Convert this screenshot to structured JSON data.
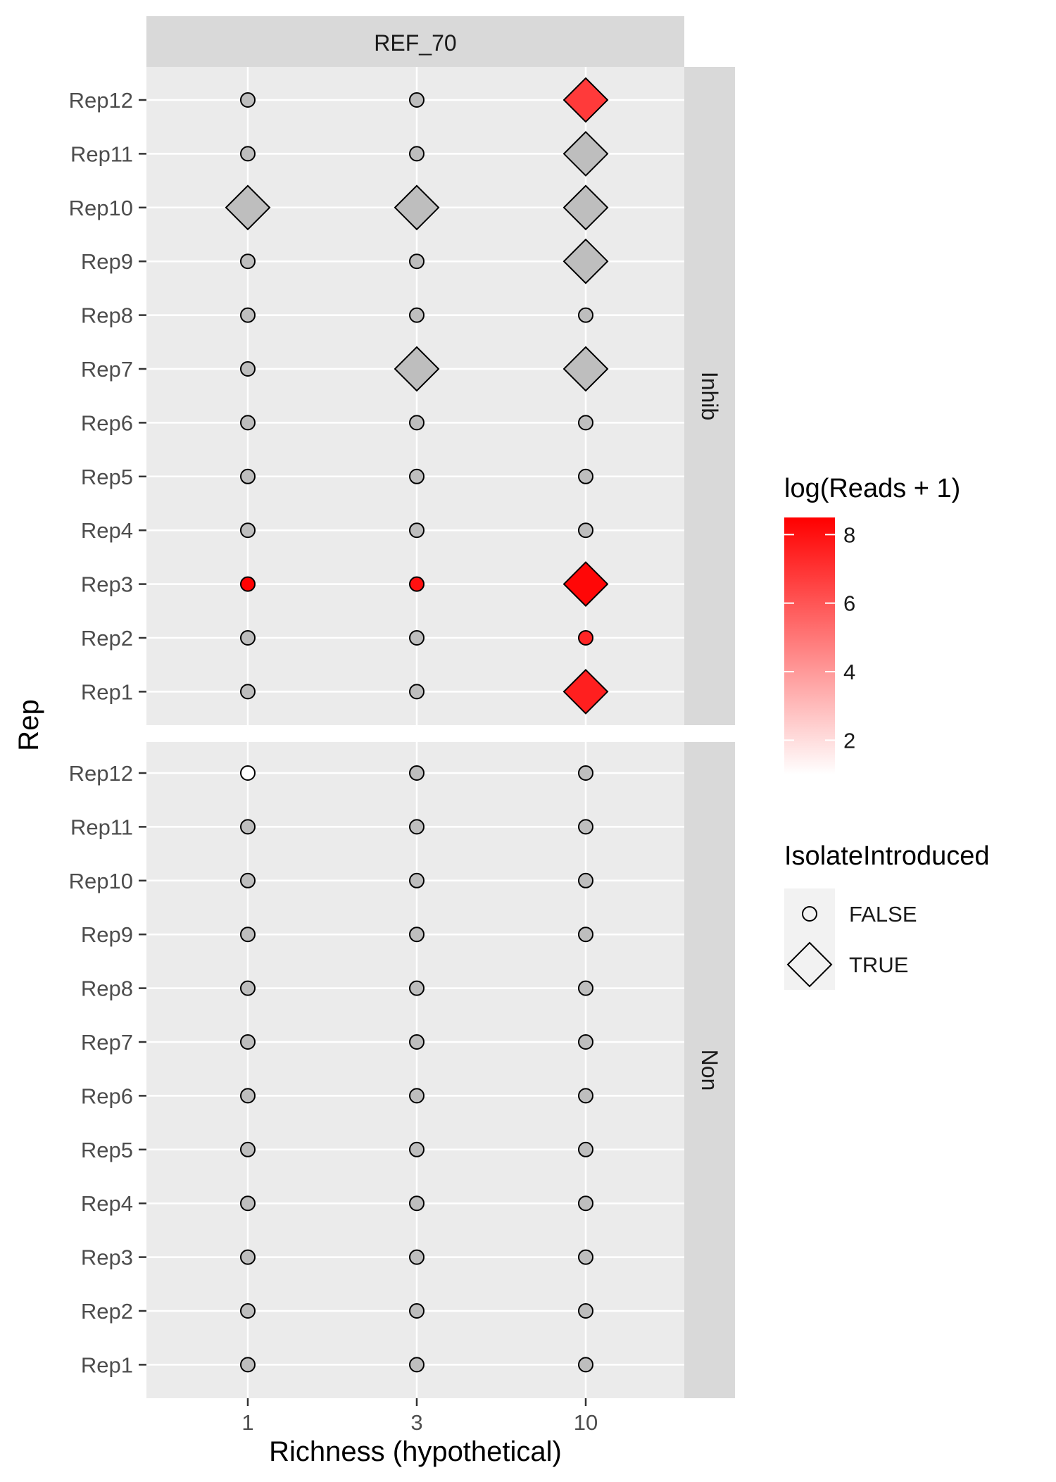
{
  "chart_data": {
    "type": "scatter",
    "facet_title": "REF_70",
    "panels": [
      "Inhib",
      "Non"
    ],
    "x_categories": [
      "1",
      "3",
      "10"
    ],
    "y_categories": [
      "Rep1",
      "Rep2",
      "Rep3",
      "Rep4",
      "Rep5",
      "Rep6",
      "Rep7",
      "Rep8",
      "Rep9",
      "Rep10",
      "Rep11",
      "Rep12"
    ],
    "xlabel": "Richness (hypothetical)",
    "ylabel": "Rep",
    "color_legend": {
      "title": "log(Reads + 1)",
      "min": 1.0,
      "max": 8.5,
      "ticks": [
        2,
        4,
        6,
        8
      ],
      "low_color": "#ffffff",
      "high_color": "#ff0000"
    },
    "shape_legend": {
      "title": "IsolateIntroduced",
      "items": [
        {
          "label": "FALSE",
          "shape": "circle-icon"
        },
        {
          "label": "TRUE",
          "shape": "diamond-icon"
        }
      ]
    },
    "na_color": "#bebebe",
    "points": [
      {
        "panel": "Inhib",
        "x": "1",
        "rep": "Rep12",
        "introduced": false,
        "value": null
      },
      {
        "panel": "Inhib",
        "x": "3",
        "rep": "Rep12",
        "introduced": false,
        "value": null
      },
      {
        "panel": "Inhib",
        "x": "10",
        "rep": "Rep12",
        "introduced": true,
        "value": 6.8
      },
      {
        "panel": "Inhib",
        "x": "1",
        "rep": "Rep11",
        "introduced": false,
        "value": null
      },
      {
        "panel": "Inhib",
        "x": "3",
        "rep": "Rep11",
        "introduced": false,
        "value": null
      },
      {
        "panel": "Inhib",
        "x": "10",
        "rep": "Rep11",
        "introduced": true,
        "value": null
      },
      {
        "panel": "Inhib",
        "x": "1",
        "rep": "Rep10",
        "introduced": true,
        "value": null
      },
      {
        "panel": "Inhib",
        "x": "3",
        "rep": "Rep10",
        "introduced": true,
        "value": null
      },
      {
        "panel": "Inhib",
        "x": "10",
        "rep": "Rep10",
        "introduced": true,
        "value": null
      },
      {
        "panel": "Inhib",
        "x": "1",
        "rep": "Rep9",
        "introduced": false,
        "value": null
      },
      {
        "panel": "Inhib",
        "x": "3",
        "rep": "Rep9",
        "introduced": false,
        "value": null
      },
      {
        "panel": "Inhib",
        "x": "10",
        "rep": "Rep9",
        "introduced": true,
        "value": null
      },
      {
        "panel": "Inhib",
        "x": "1",
        "rep": "Rep8",
        "introduced": false,
        "value": null
      },
      {
        "panel": "Inhib",
        "x": "3",
        "rep": "Rep8",
        "introduced": false,
        "value": null
      },
      {
        "panel": "Inhib",
        "x": "10",
        "rep": "Rep8",
        "introduced": false,
        "value": null
      },
      {
        "panel": "Inhib",
        "x": "1",
        "rep": "Rep7",
        "introduced": false,
        "value": null
      },
      {
        "panel": "Inhib",
        "x": "3",
        "rep": "Rep7",
        "introduced": true,
        "value": null
      },
      {
        "panel": "Inhib",
        "x": "10",
        "rep": "Rep7",
        "introduced": true,
        "value": null
      },
      {
        "panel": "Inhib",
        "x": "1",
        "rep": "Rep6",
        "introduced": false,
        "value": null
      },
      {
        "panel": "Inhib",
        "x": "3",
        "rep": "Rep6",
        "introduced": false,
        "value": null
      },
      {
        "panel": "Inhib",
        "x": "10",
        "rep": "Rep6",
        "introduced": false,
        "value": null
      },
      {
        "panel": "Inhib",
        "x": "1",
        "rep": "Rep5",
        "introduced": false,
        "value": null
      },
      {
        "panel": "Inhib",
        "x": "3",
        "rep": "Rep5",
        "introduced": false,
        "value": null
      },
      {
        "panel": "Inhib",
        "x": "10",
        "rep": "Rep5",
        "introduced": false,
        "value": null
      },
      {
        "panel": "Inhib",
        "x": "1",
        "rep": "Rep4",
        "introduced": false,
        "value": null
      },
      {
        "panel": "Inhib",
        "x": "3",
        "rep": "Rep4",
        "introduced": false,
        "value": null
      },
      {
        "panel": "Inhib",
        "x": "10",
        "rep": "Rep4",
        "introduced": false,
        "value": null
      },
      {
        "panel": "Inhib",
        "x": "1",
        "rep": "Rep3",
        "introduced": false,
        "value": 8.4
      },
      {
        "panel": "Inhib",
        "x": "3",
        "rep": "Rep3",
        "introduced": false,
        "value": 8.0
      },
      {
        "panel": "Inhib",
        "x": "10",
        "rep": "Rep3",
        "introduced": true,
        "value": 8.3
      },
      {
        "panel": "Inhib",
        "x": "1",
        "rep": "Rep2",
        "introduced": false,
        "value": null
      },
      {
        "panel": "Inhib",
        "x": "3",
        "rep": "Rep2",
        "introduced": false,
        "value": null
      },
      {
        "panel": "Inhib",
        "x": "10",
        "rep": "Rep2",
        "introduced": false,
        "value": 7.4
      },
      {
        "panel": "Inhib",
        "x": "1",
        "rep": "Rep1",
        "introduced": false,
        "value": null
      },
      {
        "panel": "Inhib",
        "x": "3",
        "rep": "Rep1",
        "introduced": false,
        "value": null
      },
      {
        "panel": "Inhib",
        "x": "10",
        "rep": "Rep1",
        "introduced": true,
        "value": 7.6
      },
      {
        "panel": "Non",
        "x": "1",
        "rep": "Rep12",
        "introduced": false,
        "value": 1.0
      },
      {
        "panel": "Non",
        "x": "3",
        "rep": "Rep12",
        "introduced": false,
        "value": null
      },
      {
        "panel": "Non",
        "x": "10",
        "rep": "Rep12",
        "introduced": false,
        "value": null
      },
      {
        "panel": "Non",
        "x": "1",
        "rep": "Rep11",
        "introduced": false,
        "value": null
      },
      {
        "panel": "Non",
        "x": "3",
        "rep": "Rep11",
        "introduced": false,
        "value": null
      },
      {
        "panel": "Non",
        "x": "10",
        "rep": "Rep11",
        "introduced": false,
        "value": null
      },
      {
        "panel": "Non",
        "x": "1",
        "rep": "Rep10",
        "introduced": false,
        "value": null
      },
      {
        "panel": "Non",
        "x": "3",
        "rep": "Rep10",
        "introduced": false,
        "value": null
      },
      {
        "panel": "Non",
        "x": "10",
        "rep": "Rep10",
        "introduced": false,
        "value": null
      },
      {
        "panel": "Non",
        "x": "1",
        "rep": "Rep9",
        "introduced": false,
        "value": null
      },
      {
        "panel": "Non",
        "x": "3",
        "rep": "Rep9",
        "introduced": false,
        "value": null
      },
      {
        "panel": "Non",
        "x": "10",
        "rep": "Rep9",
        "introduced": false,
        "value": null
      },
      {
        "panel": "Non",
        "x": "1",
        "rep": "Rep8",
        "introduced": false,
        "value": null
      },
      {
        "panel": "Non",
        "x": "3",
        "rep": "Rep8",
        "introduced": false,
        "value": null
      },
      {
        "panel": "Non",
        "x": "10",
        "rep": "Rep8",
        "introduced": false,
        "value": null
      },
      {
        "panel": "Non",
        "x": "1",
        "rep": "Rep7",
        "introduced": false,
        "value": null
      },
      {
        "panel": "Non",
        "x": "3",
        "rep": "Rep7",
        "introduced": false,
        "value": null
      },
      {
        "panel": "Non",
        "x": "10",
        "rep": "Rep7",
        "introduced": false,
        "value": null
      },
      {
        "panel": "Non",
        "x": "1",
        "rep": "Rep6",
        "introduced": false,
        "value": null
      },
      {
        "panel": "Non",
        "x": "3",
        "rep": "Rep6",
        "introduced": false,
        "value": null
      },
      {
        "panel": "Non",
        "x": "10",
        "rep": "Rep6",
        "introduced": false,
        "value": null
      },
      {
        "panel": "Non",
        "x": "1",
        "rep": "Rep5",
        "introduced": false,
        "value": null
      },
      {
        "panel": "Non",
        "x": "3",
        "rep": "Rep5",
        "introduced": false,
        "value": null
      },
      {
        "panel": "Non",
        "x": "10",
        "rep": "Rep5",
        "introduced": false,
        "value": null
      },
      {
        "panel": "Non",
        "x": "1",
        "rep": "Rep4",
        "introduced": false,
        "value": null
      },
      {
        "panel": "Non",
        "x": "3",
        "rep": "Rep4",
        "introduced": false,
        "value": null
      },
      {
        "panel": "Non",
        "x": "10",
        "rep": "Rep4",
        "introduced": false,
        "value": null
      },
      {
        "panel": "Non",
        "x": "1",
        "rep": "Rep3",
        "introduced": false,
        "value": null
      },
      {
        "panel": "Non",
        "x": "3",
        "rep": "Rep3",
        "introduced": false,
        "value": null
      },
      {
        "panel": "Non",
        "x": "10",
        "rep": "Rep3",
        "introduced": false,
        "value": null
      },
      {
        "panel": "Non",
        "x": "1",
        "rep": "Rep2",
        "introduced": false,
        "value": null
      },
      {
        "panel": "Non",
        "x": "3",
        "rep": "Rep2",
        "introduced": false,
        "value": null
      },
      {
        "panel": "Non",
        "x": "10",
        "rep": "Rep2",
        "introduced": false,
        "value": null
      },
      {
        "panel": "Non",
        "x": "1",
        "rep": "Rep1",
        "introduced": false,
        "value": null
      },
      {
        "panel": "Non",
        "x": "3",
        "rep": "Rep1",
        "introduced": false,
        "value": null
      },
      {
        "panel": "Non",
        "x": "10",
        "rep": "Rep1",
        "introduced": false,
        "value": null
      }
    ]
  }
}
